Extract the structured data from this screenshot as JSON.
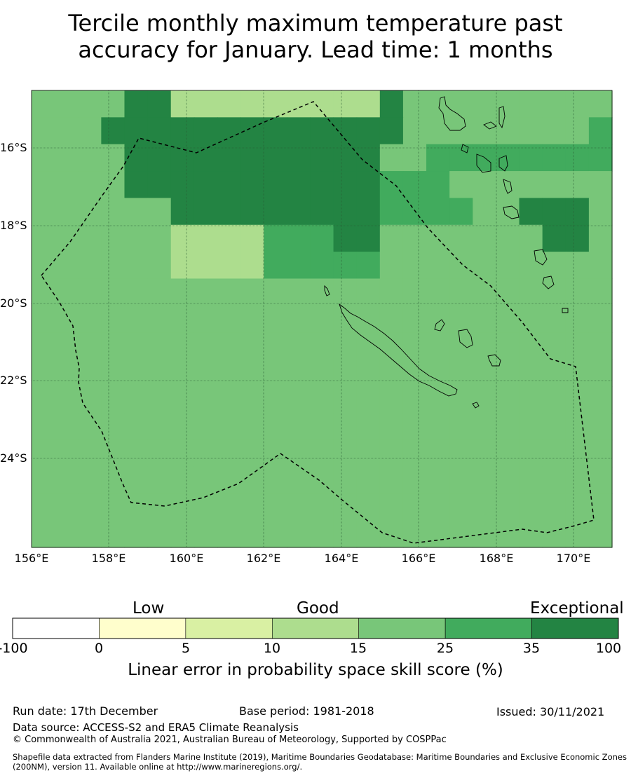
{
  "title": {
    "line1": "Tercile monthly maximum temperature past",
    "line2": "accuracy for January. Lead time: 1 months"
  },
  "map": {
    "lat_labels": [
      "16°S",
      "18°S",
      "20°S",
      "22°S",
      "24°S"
    ],
    "lon_labels": [
      "156°E",
      "158°E",
      "160°E",
      "162°E",
      "164°E",
      "166°E",
      "168°E",
      "170°E"
    ],
    "lon_range": [
      156.0,
      171.0
    ],
    "lat_range": [
      -26.25,
      -14.4
    ],
    "grid_cell_deg": 0.833,
    "zone_boundary": "dashed black line (EEZ)",
    "skill_grid_categories_rows_north_to_south": [
      "4444663333333336444444444",
      "4446666666666666444444445",
      "4444666666666664455555555",
      "4444666666666665554444444",
      "4444446666666665555446664",
      "4444443333555664444444664",
      "4444443333555554444444444",
      "4444444444444444444444444",
      "4444444444444444444444444",
      "4444444444444444444444444",
      "4444444444444444444444444",
      "4444444444444444444444444",
      "4444444444444444444444444",
      "4444444444444444444444444",
      "4444444444444444444444444",
      "4444444444444444444444444",
      "4444444444444444444444444"
    ]
  },
  "legend": {
    "category_labels": [
      "Low",
      "Good",
      "Exceptional"
    ],
    "ticks": [
      "-100",
      "0",
      "5",
      "10",
      "15",
      "25",
      "35",
      "100"
    ],
    "bin_colors": [
      "#ffffff",
      "#fffecc",
      "#d9f0a3",
      "#addd8e",
      "#78c679",
      "#41ab5d",
      "#238443"
    ],
    "title": "Linear error in probability space skill score (%)"
  },
  "footer": {
    "run_date": "Run date: 17th December",
    "base_period": "Base period: 1981-2018",
    "issued": "Issued: 30/11/2021",
    "data_source": "Data source: ACCESS-S2 and ERA5 Climate Reanalysis",
    "copyright": "© Commonwealth of Australia 2021, Australian Bureau of Meteorology, Supported by COSPPac",
    "shapefile_note": "Shapefile data extracted from Flanders Marine Institute (2019), Maritime Boundaries Geodatabase: Maritime Boundaries and Exclusive Economic Zones (200NM), version 11. Available online at http://www.marineregions.org/."
  }
}
